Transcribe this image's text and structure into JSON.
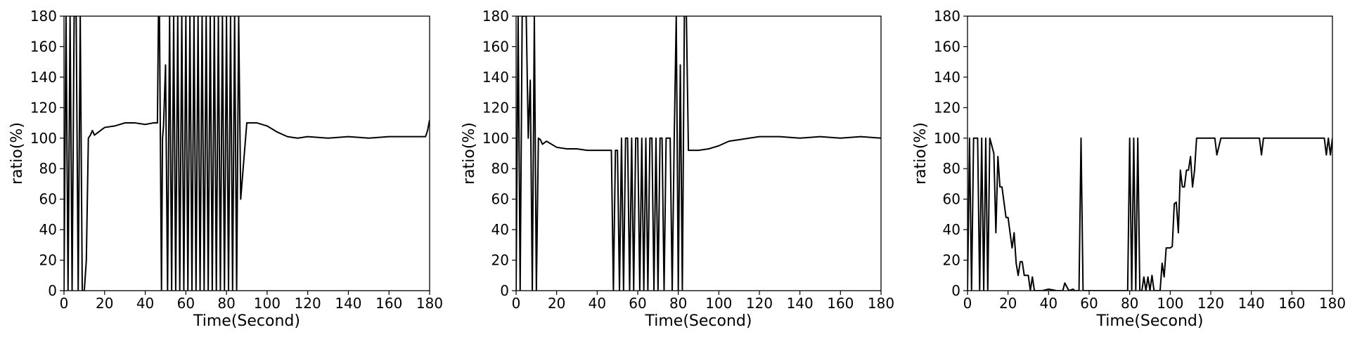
{
  "chart_data": [
    {
      "type": "line",
      "xlabel": "Time(Second)",
      "ylabel": "ratio(%)",
      "xlim": [
        0,
        180
      ],
      "ylim": [
        0,
        180
      ],
      "xticks": [
        0,
        20,
        40,
        60,
        80,
        100,
        120,
        140,
        160,
        180
      ],
      "yticks": [
        0,
        20,
        40,
        60,
        80,
        100,
        120,
        140,
        160,
        180
      ],
      "grid": false,
      "series": [
        {
          "x": [
            0,
            1,
            2,
            3,
            4,
            5,
            6,
            7,
            8,
            9,
            10,
            11,
            12,
            13,
            14,
            15,
            20,
            25,
            30,
            35,
            40,
            44,
            46,
            46.5,
            47,
            48,
            48.5,
            49,
            50,
            51,
            52,
            53,
            54,
            55,
            56,
            57,
            58,
            59,
            60,
            61,
            62,
            63,
            64,
            65,
            66,
            67,
            68,
            69,
            70,
            71,
            72,
            73,
            74,
            75,
            76,
            77,
            78,
            79,
            80,
            81,
            82,
            83,
            84,
            85,
            86,
            87,
            90,
            95,
            100,
            105,
            110,
            115,
            120,
            130,
            140,
            150,
            160,
            170,
            178,
            179,
            180
          ],
          "y": [
            0,
            180,
            0,
            180,
            0,
            180,
            180,
            0,
            180,
            0,
            0,
            20,
            100,
            102,
            105,
            102,
            107,
            108,
            110,
            110,
            109,
            110,
            110,
            180,
            180,
            0,
            100,
            108,
            148,
            0,
            180,
            0,
            180,
            0,
            180,
            0,
            180,
            0,
            180,
            0,
            180,
            0,
            180,
            0,
            180,
            0,
            180,
            0,
            180,
            0,
            180,
            0,
            180,
            0,
            180,
            0,
            180,
            0,
            180,
            0,
            180,
            0,
            180,
            0,
            180,
            60,
            110,
            110,
            108,
            104,
            101,
            100,
            101,
            100,
            101,
            100,
            101,
            101,
            101,
            105,
            112
          ]
        }
      ]
    },
    {
      "type": "line",
      "xlabel": "Time(Second)",
      "ylabel": "ratio(%)",
      "xlim": [
        0,
        180
      ],
      "ylim": [
        0,
        180
      ],
      "xticks": [
        0,
        20,
        40,
        60,
        80,
        100,
        120,
        140,
        160,
        180
      ],
      "yticks": [
        0,
        20,
        40,
        60,
        80,
        100,
        120,
        140,
        160,
        180
      ],
      "grid": false,
      "series": [
        {
          "x": [
            0,
            1,
            2,
            3,
            4,
            5,
            6,
            7,
            8,
            9,
            10,
            11,
            12,
            13,
            15,
            20,
            25,
            30,
            35,
            40,
            45,
            47,
            48,
            49,
            50,
            51,
            52,
            53,
            54,
            55,
            56,
            57,
            58,
            59,
            60,
            61,
            62,
            63,
            64,
            65,
            66,
            67,
            68,
            69,
            70,
            71,
            72,
            73,
            74,
            75,
            76,
            77,
            78,
            79,
            80,
            81,
            82,
            83,
            84,
            85,
            86,
            90,
            95,
            100,
            105,
            110,
            115,
            120,
            130,
            140,
            150,
            160,
            170,
            180
          ],
          "y": [
            0,
            180,
            0,
            180,
            180,
            180,
            100,
            138,
            0,
            180,
            0,
            100,
            99,
            96,
            98,
            94,
            93,
            93,
            92,
            92,
            92,
            92,
            0,
            92,
            92,
            0,
            100,
            0,
            100,
            100,
            0,
            100,
            0,
            100,
            100,
            0,
            100,
            0,
            100,
            0,
            100,
            100,
            0,
            100,
            0,
            100,
            100,
            0,
            100,
            100,
            100,
            0,
            100,
            180,
            0,
            148,
            0,
            180,
            180,
            92,
            92,
            92,
            93,
            95,
            98,
            99,
            100,
            101,
            101,
            100,
            101,
            100,
            101,
            100
          ]
        }
      ]
    },
    {
      "type": "line",
      "xlabel": "Time(Second)",
      "ylabel": "ratio(%)",
      "xlim": [
        0,
        180
      ],
      "ylim": [
        0,
        180
      ],
      "xticks": [
        0,
        20,
        40,
        60,
        80,
        100,
        120,
        140,
        160,
        180
      ],
      "yticks": [
        0,
        20,
        40,
        60,
        80,
        100,
        120,
        140,
        160,
        180
      ],
      "grid": false,
      "series": [
        {
          "x": [
            0,
            1,
            2,
            3,
            4,
            5,
            6,
            7,
            8,
            9,
            10,
            11,
            12,
            13,
            14,
            15,
            16,
            17,
            18,
            19,
            20,
            21,
            22,
            23,
            24,
            25,
            26,
            27,
            28,
            29,
            30,
            31,
            32,
            33,
            34,
            35,
            37,
            40,
            44,
            45,
            46,
            47,
            48,
            50,
            52,
            53,
            54,
            55,
            56,
            57,
            58,
            60,
            65,
            70,
            75,
            78,
            79,
            80,
            81,
            82,
            83,
            84,
            85,
            86,
            87,
            88,
            89,
            90,
            91,
            92,
            93,
            95,
            96,
            97,
            98,
            99,
            100,
            101,
            102,
            103,
            104,
            105,
            106,
            107,
            108,
            109,
            110,
            111,
            112,
            113,
            115,
            120,
            122,
            123,
            125,
            130,
            140,
            144,
            145,
            146,
            150,
            160,
            170,
            176,
            177,
            178,
            179,
            180
          ],
          "y": [
            0,
            100,
            0,
            100,
            100,
            100,
            0,
            100,
            0,
            100,
            0,
            100,
            95,
            90,
            38,
            88,
            68,
            68,
            58,
            48,
            48,
            38,
            28,
            38,
            18,
            10,
            19,
            19,
            10,
            10,
            10,
            0,
            9,
            0,
            0,
            0,
            0,
            1,
            0,
            0,
            0,
            0,
            5,
            0,
            1,
            0,
            0,
            0,
            100,
            0,
            0,
            0,
            0,
            0,
            0,
            0,
            0,
            100,
            0,
            100,
            0,
            100,
            0,
            0,
            9,
            0,
            9,
            0,
            10,
            0,
            0,
            0,
            18,
            9,
            28,
            28,
            28,
            29,
            57,
            58,
            38,
            79,
            68,
            68,
            79,
            79,
            88,
            68,
            79,
            100,
            100,
            100,
            100,
            89,
            100,
            100,
            100,
            100,
            89,
            100,
            100,
            100,
            100,
            100,
            89,
            100,
            89,
            100
          ]
        }
      ]
    }
  ]
}
